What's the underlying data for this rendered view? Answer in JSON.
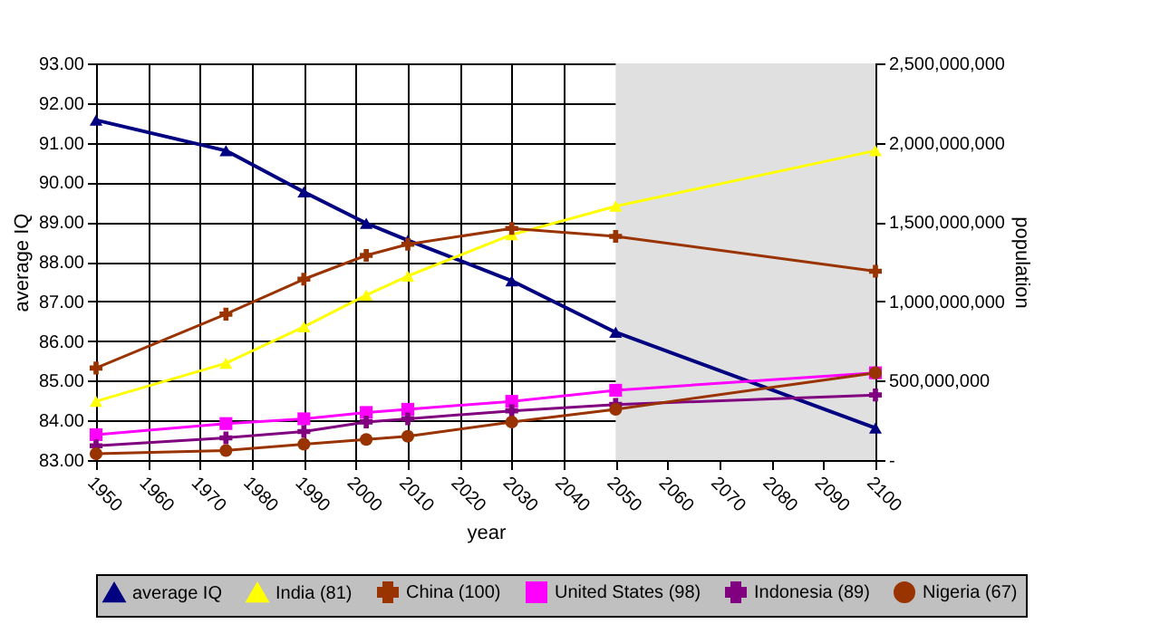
{
  "chart_data": {
    "type": "line",
    "xlabel": "year",
    "ylabel": "average IQ",
    "y2label": "population",
    "x": [
      1950,
      1975,
      1990,
      2002,
      2010,
      2030,
      2050,
      2100
    ],
    "xlim": [
      1950,
      2100
    ],
    "xticks": [
      1950,
      1960,
      1970,
      1980,
      1990,
      2000,
      2010,
      2020,
      2030,
      2040,
      2050,
      2060,
      2070,
      2080,
      2090,
      2100
    ],
    "ylim": [
      83,
      93
    ],
    "yticks": [
      {
        "value": 83,
        "label": "83.00"
      },
      {
        "value": 84,
        "label": "84.00"
      },
      {
        "value": 85,
        "label": "85.00"
      },
      {
        "value": 86,
        "label": "86.00"
      },
      {
        "value": 87,
        "label": "87.00"
      },
      {
        "value": 88,
        "label": "88.00"
      },
      {
        "value": 89,
        "label": "89.00"
      },
      {
        "value": 90,
        "label": "90.00"
      },
      {
        "value": 91,
        "label": "91.00"
      },
      {
        "value": 92,
        "label": "92.00"
      },
      {
        "value": 93,
        "label": "93.00"
      }
    ],
    "y2lim": [
      0,
      2500000000
    ],
    "y2ticks": [
      {
        "value": 0,
        "label": "-"
      },
      {
        "value": 500000000,
        "label": "500,000,000"
      },
      {
        "value": 1000000000,
        "label": "1,000,000,000"
      },
      {
        "value": 1500000000,
        "label": "1,500,000,000"
      },
      {
        "value": 2000000000,
        "label": "2,000,000,000"
      },
      {
        "value": 2500000000,
        "label": "2,500,000,000"
      }
    ],
    "series": [
      {
        "name": "average IQ",
        "color": "#000080",
        "marker": "triangle",
        "values": [
          91.57,
          90.8,
          89.76,
          88.97,
          88.54,
          87.52,
          86.22,
          83.81
        ]
      },
      {
        "name": "India (81)",
        "color": "#ffff00",
        "marker": "triangle",
        "axis": "y2",
        "values": [
          370000000,
          610000000,
          840000000,
          1040000000,
          1160000000,
          1420000000,
          1600000000,
          1950000000
        ]
      },
      {
        "name": "China (100)",
        "color": "#993300",
        "marker": "cross",
        "axis": "y2",
        "values": [
          580000000,
          920000000,
          1140000000,
          1290000000,
          1360000000,
          1460000000,
          1410000000,
          1190000000
        ]
      },
      {
        "name": "United States (98)",
        "color": "#ff00ff",
        "marker": "square",
        "axis": "y2",
        "values": [
          160000000,
          230000000,
          260000000,
          300000000,
          320000000,
          370000000,
          440000000,
          550000000
        ]
      },
      {
        "name": "Indonesia (89)",
        "color": "#800080",
        "marker": "cross",
        "axis": "y2",
        "values": [
          90000000,
          140000000,
          180000000,
          240000000,
          260000000,
          310000000,
          350000000,
          410000000
        ]
      },
      {
        "name": "Nigeria (67)",
        "color": "#993300",
        "marker": "circle",
        "axis": "y2",
        "values": [
          40000000,
          60000000,
          100000000,
          130000000,
          150000000,
          240000000,
          320000000,
          550000000
        ]
      }
    ],
    "bands": [
      {
        "axis": "x",
        "from": 2050,
        "to": 2100,
        "color": "#e0e0e0"
      }
    ],
    "grid": true,
    "legend": "bottom"
  }
}
